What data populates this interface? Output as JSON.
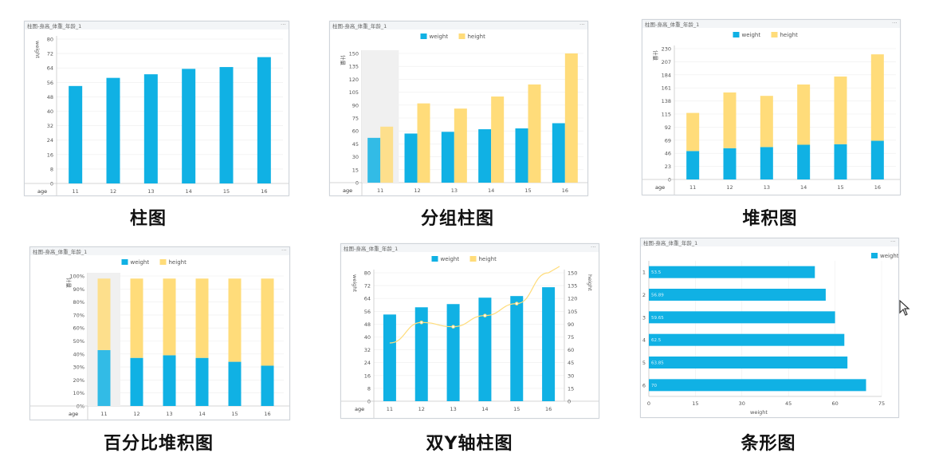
{
  "colors": {
    "weight": "#10B1E4",
    "height": "#FFDC7A",
    "axis": "#c8c8c8",
    "text": "#555555",
    "grid": "#eeeeee"
  },
  "captions": [
    "柱图",
    "分组柱图",
    "堆积图",
    "百分比堆积图",
    "双Y轴柱图",
    "条形图"
  ],
  "chart_data": [
    {
      "type": "bar",
      "panel_title": "柱图-身高_体重_年龄_1",
      "x_axis_name": "age",
      "categories": [
        "11",
        "12",
        "13",
        "14",
        "15",
        "16"
      ],
      "series": [
        {
          "name": "weight",
          "values": [
            54,
            58.5,
            60.5,
            63.5,
            64.5,
            70
          ]
        }
      ],
      "ylabel": "weight",
      "ylim": [
        0,
        80
      ],
      "yticks": [
        "0",
        "8",
        "16",
        "24",
        "32",
        "40",
        "48",
        "56",
        "64",
        "72",
        "80"
      ],
      "legend": false
    },
    {
      "type": "bar",
      "panel_title": "柱图-身高_体重_年龄_1",
      "x_axis_name": "age",
      "categories": [
        "11",
        "12",
        "13",
        "14",
        "15",
        "16"
      ],
      "series": [
        {
          "name": "weight",
          "values": [
            52,
            57,
            59,
            62,
            63,
            69
          ]
        },
        {
          "name": "height",
          "values": [
            65,
            92,
            86,
            100,
            114,
            150
          ]
        }
      ],
      "ylabel": "计量",
      "ylim": [
        0,
        150
      ],
      "yticks": [
        "0",
        "15",
        "30",
        "45",
        "60",
        "75",
        "90",
        "105",
        "120",
        "135",
        "150"
      ],
      "legend": true,
      "legend_labels": [
        "weight",
        "height"
      ]
    },
    {
      "type": "bar",
      "stacked": true,
      "panel_title": "柱图-身高_体重_年龄_1",
      "x_axis_name": "age",
      "categories": [
        "11",
        "12",
        "13",
        "14",
        "15",
        "16"
      ],
      "series": [
        {
          "name": "weight",
          "values": [
            50,
            55,
            57,
            61,
            62,
            68
          ]
        },
        {
          "name": "height",
          "values": [
            67,
            98,
            90,
            106,
            119,
            152
          ]
        }
      ],
      "ylabel": "计量",
      "ylim": [
        0,
        230
      ],
      "yticks": [
        "0",
        "23",
        "46",
        "69",
        "92",
        "115",
        "138",
        "161",
        "184",
        "207",
        "230"
      ],
      "legend": true,
      "legend_labels": [
        "weight",
        "height"
      ]
    },
    {
      "type": "bar",
      "stacked": "percent",
      "panel_title": "柱图-身高_体重_年龄_1",
      "x_axis_name": "age",
      "categories": [
        "11",
        "12",
        "13",
        "14",
        "15",
        "16"
      ],
      "series": [
        {
          "name": "weight",
          "values": [
            43,
            37,
            39,
            37,
            34,
            31
          ]
        },
        {
          "name": "height",
          "values": [
            55,
            61,
            59,
            61,
            64,
            67
          ]
        }
      ],
      "ylabel": "计量",
      "ylim": [
        0,
        100
      ],
      "yticks": [
        "0%",
        "10%",
        "20%",
        "30%",
        "40%",
        "50%",
        "60%",
        "70%",
        "80%",
        "90%",
        "100%"
      ],
      "legend": true,
      "legend_labels": [
        "weight",
        "height"
      ]
    },
    {
      "type": "bar+line",
      "panel_title": "柱图-身高_体重_年龄_1",
      "x_axis_name": "age",
      "categories": [
        "11",
        "12",
        "13",
        "14",
        "15",
        "16"
      ],
      "series": [
        {
          "name": "weight",
          "values": [
            54,
            58.5,
            60.5,
            64.5,
            65.5,
            71
          ],
          "axis": "left",
          "kind": "bar"
        },
        {
          "name": "height",
          "values": [
            68,
            92,
            87,
            100,
            114,
            150
          ],
          "axis": "right",
          "kind": "line"
        }
      ],
      "ylabel": "weight",
      "ylabel_right": "height",
      "ylim": [
        0,
        80
      ],
      "ylim_right": [
        0,
        150
      ],
      "yticks": [
        "0",
        "8",
        "16",
        "24",
        "32",
        "40",
        "48",
        "56",
        "64",
        "72",
        "80"
      ],
      "yticks_right": [
        "0",
        "15",
        "30",
        "45",
        "60",
        "75",
        "90",
        "105",
        "120",
        "135",
        "150"
      ],
      "legend": true,
      "legend_labels": [
        "weight",
        "height"
      ]
    },
    {
      "type": "bar",
      "orientation": "horizontal",
      "panel_title": "柱图-身高_体重_年龄_1",
      "categories": [
        "1",
        "2",
        "3",
        "4",
        "5",
        "6"
      ],
      "series": [
        {
          "name": "weight",
          "values": [
            53.5,
            57,
            60,
            63,
            64,
            70
          ]
        }
      ],
      "data_labels": [
        "53.5",
        "56.89",
        "59.65",
        "62.5",
        "63.85",
        "70"
      ],
      "xlabel": "weight",
      "xlim": [
        0,
        75
      ],
      "xticks": [
        "0",
        "15",
        "30",
        "45",
        "60",
        "75"
      ],
      "legend": true,
      "legend_labels": [
        "weight"
      ]
    }
  ]
}
